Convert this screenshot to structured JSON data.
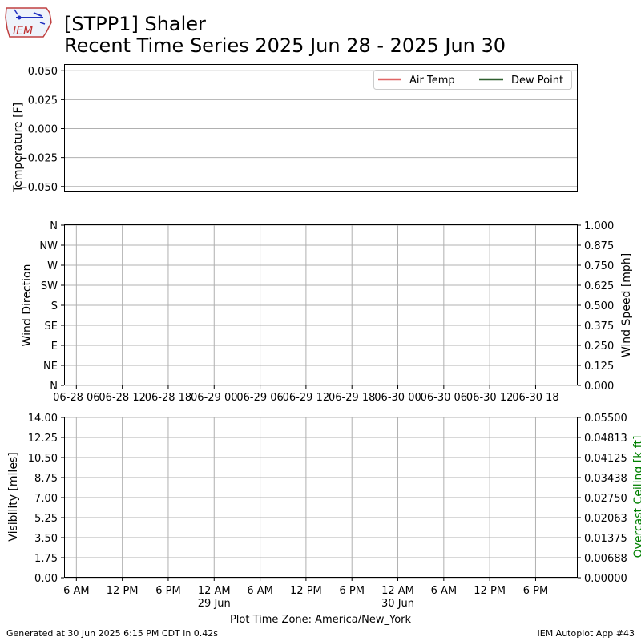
{
  "header": {
    "title_line1": "[STPP1] Shaler",
    "title_line2": "Recent Time Series 2025 Jun 28 - 2025 Jun 30",
    "logo_text": "IEM"
  },
  "footer": {
    "generated": "Generated at 30 Jun 2025 6:15 PM CDT in 0.42s",
    "app": "IEM Autoplot App #43",
    "timezone_label": "Plot Time Zone: America/New_York"
  },
  "colors": {
    "air_temp": "#e06666",
    "dew_point": "#2f5f2f",
    "ceiling_axis": "#008000",
    "grid": "#b0b0b0"
  },
  "chart_data": [
    {
      "type": "line",
      "ylabel": "Temperature [F]",
      "ylim": [
        -0.055,
        0.055
      ],
      "yticks": [
        "0.050",
        "0.025",
        "0.000",
        "−0.025",
        "−0.050"
      ],
      "ytick_values": [
        0.05,
        0.025,
        0.0,
        -0.025,
        -0.05
      ],
      "grid": "y",
      "legend_position": "top-right",
      "series": [
        {
          "name": "Air Temp",
          "values": []
        },
        {
          "name": "Dew Point",
          "values": []
        }
      ]
    },
    {
      "type": "scatter",
      "ylabel": "Wind Direction",
      "ylabel_right": "Wind Speed [mph]",
      "ylim": [
        0,
        360
      ],
      "ylim_right": [
        0,
        1
      ],
      "yticks": [
        "N",
        "NW",
        "W",
        "SW",
        "S",
        "SE",
        "E",
        "NE",
        "N"
      ],
      "ytick_values": [
        360,
        315,
        270,
        225,
        180,
        135,
        90,
        45,
        0
      ],
      "yticks_right": [
        "1.000",
        "0.875",
        "0.750",
        "0.625",
        "0.500",
        "0.375",
        "0.250",
        "0.125",
        "0.000"
      ],
      "ytick_values_right": [
        1.0,
        0.875,
        0.75,
        0.625,
        0.5,
        0.375,
        0.25,
        0.125,
        0.0
      ],
      "xticks": [
        "06-28 06",
        "06-28 12",
        "06-28 18",
        "06-29 00",
        "06-29 06",
        "06-29 12",
        "06-29 18",
        "06-30 00",
        "06-30 06",
        "06-30 12",
        "06-30 18"
      ],
      "xtick_values": [
        "2025-06-28 06:00",
        "2025-06-28 12:00",
        "2025-06-28 18:00",
        "2025-06-29 00:00",
        "2025-06-29 06:00",
        "2025-06-29 12:00",
        "2025-06-29 18:00",
        "2025-06-30 00:00",
        "2025-06-30 06:00",
        "2025-06-30 12:00",
        "2025-06-30 18:00"
      ],
      "grid": "both",
      "series": []
    },
    {
      "type": "line",
      "ylabel": "Visibility [miles]",
      "ylabel_right": "Overcast Ceiling [k ft]",
      "ylim": [
        0,
        14
      ],
      "ylim_right": [
        0,
        0.055
      ],
      "yticks": [
        "14.00",
        "12.25",
        "10.50",
        "8.75",
        "7.00",
        "5.25",
        "3.50",
        "1.75",
        "0.00"
      ],
      "ytick_values": [
        14,
        12.25,
        10.5,
        8.75,
        7,
        5.25,
        3.5,
        1.75,
        0
      ],
      "yticks_right": [
        "0.05500",
        "0.04813",
        "0.04125",
        "0.03438",
        "0.02750",
        "0.02063",
        "0.01375",
        "0.00688",
        "0.00000"
      ],
      "ytick_values_right": [
        0.055,
        0.04813,
        0.04125,
        0.03438,
        0.0275,
        0.02063,
        0.01375,
        0.00688,
        0.0
      ],
      "xticks": [
        "6 AM",
        "12 PM",
        "6 PM",
        "12 AM",
        "6 AM",
        "12 PM",
        "6 PM",
        "12 AM",
        "6 AM",
        "12 PM",
        "6 PM"
      ],
      "xticks_sub": [
        "",
        "",
        "",
        "29 Jun",
        "",
        "",
        "",
        "30 Jun",
        "",
        "",
        ""
      ],
      "xtick_values": [
        "2025-06-28 06:00",
        "2025-06-28 12:00",
        "2025-06-28 18:00",
        "2025-06-29 00:00",
        "2025-06-29 06:00",
        "2025-06-29 12:00",
        "2025-06-29 18:00",
        "2025-06-30 00:00",
        "2025-06-30 06:00",
        "2025-06-30 12:00",
        "2025-06-30 18:00"
      ],
      "grid": "both",
      "series": []
    }
  ]
}
